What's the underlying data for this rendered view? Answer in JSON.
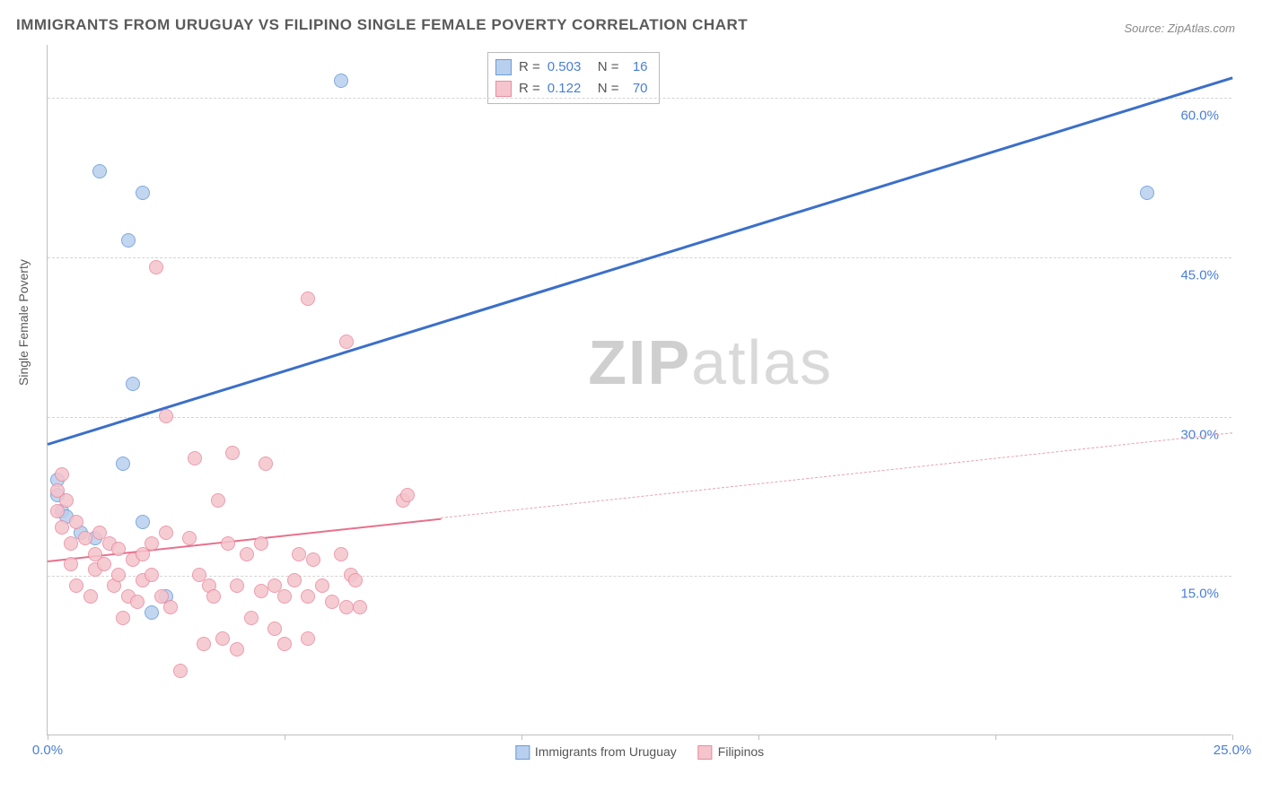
{
  "title": "IMMIGRANTS FROM URUGUAY VS FILIPINO SINGLE FEMALE POVERTY CORRELATION CHART",
  "source_label": "Source: ZipAtlas.com",
  "y_axis_label": "Single Female Poverty",
  "watermark": {
    "part1": "ZIP",
    "part2": "atlas"
  },
  "chart": {
    "type": "scatter",
    "xlim": [
      0,
      25
    ],
    "ylim": [
      0,
      65
    ],
    "x_ticks": [
      0,
      5,
      10,
      15,
      20,
      25
    ],
    "x_tick_labels": {
      "0": "0.0%",
      "25": "25.0%"
    },
    "y_grid": [
      15,
      30,
      45,
      60
    ],
    "y_tick_labels": {
      "15": "15.0%",
      "30": "30.0%",
      "45": "45.0%",
      "60": "60.0%"
    },
    "background_color": "#ffffff",
    "grid_color": "#d5d5d5",
    "axis_color": "#bfbfbf",
    "tick_label_color": "#4a7fd6",
    "point_radius": 8,
    "series": [
      {
        "name": "Immigrants from Uruguay",
        "color_fill": "#b8d0ee",
        "color_stroke": "#6a9bd8",
        "R": "0.503",
        "N": "16",
        "trend": {
          "x1": 0,
          "y1": 27.5,
          "x2": 25,
          "y2": 62,
          "width": 3,
          "dashed": false,
          "color": "#3b6fc9"
        },
        "points": [
          [
            0.2,
            24
          ],
          [
            0.2,
            22.5
          ],
          [
            0.3,
            21
          ],
          [
            0.4,
            20.5
          ],
          [
            0.7,
            19
          ],
          [
            1.1,
            53
          ],
          [
            1.7,
            46.5
          ],
          [
            2.0,
            51
          ],
          [
            1.8,
            33
          ],
          [
            1.6,
            25.5
          ],
          [
            2.2,
            11.5
          ],
          [
            1.0,
            18.5
          ],
          [
            2.0,
            20
          ],
          [
            2.5,
            13
          ],
          [
            6.2,
            61.5
          ],
          [
            23.2,
            51
          ]
        ]
      },
      {
        "name": "Filipinos",
        "color_fill": "#f5c4cc",
        "color_stroke": "#e98ba0",
        "R": "0.122",
        "N": "70",
        "trend_solid": {
          "x1": 0,
          "y1": 16.5,
          "x2": 8.3,
          "y2": 20.5,
          "width": 2.5,
          "color": "#e7718c"
        },
        "trend_dashed": {
          "x1": 8.3,
          "y1": 20.5,
          "x2": 25,
          "y2": 28.5,
          "width": 1,
          "color": "#e7a3b2"
        },
        "points": [
          [
            0.2,
            23
          ],
          [
            0.2,
            21
          ],
          [
            0.3,
            24.5
          ],
          [
            0.4,
            22
          ],
          [
            0.3,
            19.5
          ],
          [
            0.6,
            20
          ],
          [
            0.5,
            18
          ],
          [
            0.8,
            18.5
          ],
          [
            0.6,
            14
          ],
          [
            0.9,
            13
          ],
          [
            1.0,
            17
          ],
          [
            1.0,
            15.5
          ],
          [
            1.2,
            16
          ],
          [
            1.1,
            19
          ],
          [
            1.3,
            18
          ],
          [
            1.4,
            14
          ],
          [
            1.5,
            15
          ],
          [
            1.5,
            17.5
          ],
          [
            1.7,
            13
          ],
          [
            1.8,
            16.5
          ],
          [
            1.6,
            11
          ],
          [
            1.9,
            12.5
          ],
          [
            2.0,
            17
          ],
          [
            2.0,
            14.5
          ],
          [
            2.2,
            15
          ],
          [
            2.2,
            18
          ],
          [
            2.5,
            19
          ],
          [
            2.4,
            13
          ],
          [
            2.6,
            12
          ],
          [
            2.8,
            6
          ],
          [
            2.5,
            30
          ],
          [
            2.3,
            44
          ],
          [
            3.0,
            18.5
          ],
          [
            3.1,
            26
          ],
          [
            3.2,
            15
          ],
          [
            3.3,
            8.5
          ],
          [
            3.4,
            14
          ],
          [
            3.5,
            13
          ],
          [
            3.7,
            9
          ],
          [
            3.6,
            22
          ],
          [
            3.8,
            18
          ],
          [
            3.9,
            26.5
          ],
          [
            4.0,
            14
          ],
          [
            4.0,
            8
          ],
          [
            4.2,
            17
          ],
          [
            4.3,
            11
          ],
          [
            4.5,
            13.5
          ],
          [
            4.5,
            18
          ],
          [
            4.6,
            25.5
          ],
          [
            4.8,
            14
          ],
          [
            4.8,
            10
          ],
          [
            5.0,
            8.5
          ],
          [
            5.0,
            13
          ],
          [
            5.2,
            14.5
          ],
          [
            5.3,
            17
          ],
          [
            5.5,
            13
          ],
          [
            5.5,
            41
          ],
          [
            5.6,
            16.5
          ],
          [
            5.5,
            9
          ],
          [
            5.8,
            14
          ],
          [
            6.0,
            12.5
          ],
          [
            6.2,
            17
          ],
          [
            6.4,
            15
          ],
          [
            6.3,
            37
          ],
          [
            6.6,
            12
          ],
          [
            6.5,
            14.5
          ],
          [
            7.5,
            22
          ],
          [
            7.6,
            22.5
          ],
          [
            6.3,
            12
          ],
          [
            0.5,
            16
          ]
        ]
      }
    ]
  },
  "legend_top": {
    "rows": [
      {
        "swatch_fill": "#b8d0ee",
        "swatch_stroke": "#6a9bd8",
        "r_label": "R =",
        "r_val": "0.503",
        "n_label": "N =",
        "n_val": "16"
      },
      {
        "swatch_fill": "#f5c4cc",
        "swatch_stroke": "#e98ba0",
        "r_label": "R =",
        "r_val": "0.122",
        "n_label": "N =",
        "n_val": "70"
      }
    ]
  },
  "legend_bottom": [
    {
      "fill": "#b8d0ee",
      "stroke": "#6a9bd8",
      "label": "Immigrants from Uruguay"
    },
    {
      "fill": "#f5c4cc",
      "stroke": "#e98ba0",
      "label": "Filipinos"
    }
  ]
}
